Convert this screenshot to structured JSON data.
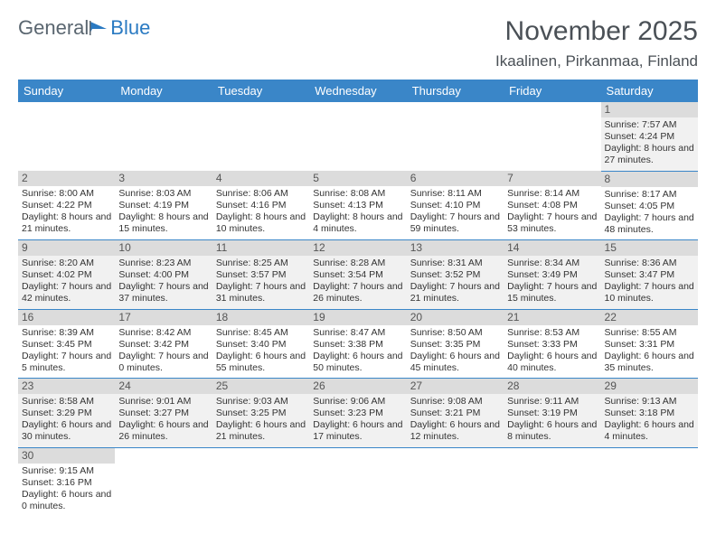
{
  "logo": {
    "general": "General",
    "blue": "Blue"
  },
  "title": "November 2025",
  "location": "Ikaalinen, Pirkanmaa, Finland",
  "headers": [
    "Sunday",
    "Monday",
    "Tuesday",
    "Wednesday",
    "Thursday",
    "Friday",
    "Saturday"
  ],
  "colors": {
    "header_bg": "#3a86c8",
    "header_text": "#ffffff",
    "daynum_bg": "#dcdcdc",
    "row_odd_bg": "#f1f1f1",
    "logo_blue": "#2a7ac2",
    "logo_gray": "#5a6670",
    "border": "#3a86c8"
  },
  "weeks": [
    [
      null,
      null,
      null,
      null,
      null,
      null,
      {
        "n": "1",
        "sr": "Sunrise: 7:57 AM",
        "ss": "Sunset: 4:24 PM",
        "dl": "Daylight: 8 hours and 27 minutes."
      }
    ],
    [
      {
        "n": "2",
        "sr": "Sunrise: 8:00 AM",
        "ss": "Sunset: 4:22 PM",
        "dl": "Daylight: 8 hours and 21 minutes."
      },
      {
        "n": "3",
        "sr": "Sunrise: 8:03 AM",
        "ss": "Sunset: 4:19 PM",
        "dl": "Daylight: 8 hours and 15 minutes."
      },
      {
        "n": "4",
        "sr": "Sunrise: 8:06 AM",
        "ss": "Sunset: 4:16 PM",
        "dl": "Daylight: 8 hours and 10 minutes."
      },
      {
        "n": "5",
        "sr": "Sunrise: 8:08 AM",
        "ss": "Sunset: 4:13 PM",
        "dl": "Daylight: 8 hours and 4 minutes."
      },
      {
        "n": "6",
        "sr": "Sunrise: 8:11 AM",
        "ss": "Sunset: 4:10 PM",
        "dl": "Daylight: 7 hours and 59 minutes."
      },
      {
        "n": "7",
        "sr": "Sunrise: 8:14 AM",
        "ss": "Sunset: 4:08 PM",
        "dl": "Daylight: 7 hours and 53 minutes."
      },
      {
        "n": "8",
        "sr": "Sunrise: 8:17 AM",
        "ss": "Sunset: 4:05 PM",
        "dl": "Daylight: 7 hours and 48 minutes."
      }
    ],
    [
      {
        "n": "9",
        "sr": "Sunrise: 8:20 AM",
        "ss": "Sunset: 4:02 PM",
        "dl": "Daylight: 7 hours and 42 minutes."
      },
      {
        "n": "10",
        "sr": "Sunrise: 8:23 AM",
        "ss": "Sunset: 4:00 PM",
        "dl": "Daylight: 7 hours and 37 minutes."
      },
      {
        "n": "11",
        "sr": "Sunrise: 8:25 AM",
        "ss": "Sunset: 3:57 PM",
        "dl": "Daylight: 7 hours and 31 minutes."
      },
      {
        "n": "12",
        "sr": "Sunrise: 8:28 AM",
        "ss": "Sunset: 3:54 PM",
        "dl": "Daylight: 7 hours and 26 minutes."
      },
      {
        "n": "13",
        "sr": "Sunrise: 8:31 AM",
        "ss": "Sunset: 3:52 PM",
        "dl": "Daylight: 7 hours and 21 minutes."
      },
      {
        "n": "14",
        "sr": "Sunrise: 8:34 AM",
        "ss": "Sunset: 3:49 PM",
        "dl": "Daylight: 7 hours and 15 minutes."
      },
      {
        "n": "15",
        "sr": "Sunrise: 8:36 AM",
        "ss": "Sunset: 3:47 PM",
        "dl": "Daylight: 7 hours and 10 minutes."
      }
    ],
    [
      {
        "n": "16",
        "sr": "Sunrise: 8:39 AM",
        "ss": "Sunset: 3:45 PM",
        "dl": "Daylight: 7 hours and 5 minutes."
      },
      {
        "n": "17",
        "sr": "Sunrise: 8:42 AM",
        "ss": "Sunset: 3:42 PM",
        "dl": "Daylight: 7 hours and 0 minutes."
      },
      {
        "n": "18",
        "sr": "Sunrise: 8:45 AM",
        "ss": "Sunset: 3:40 PM",
        "dl": "Daylight: 6 hours and 55 minutes."
      },
      {
        "n": "19",
        "sr": "Sunrise: 8:47 AM",
        "ss": "Sunset: 3:38 PM",
        "dl": "Daylight: 6 hours and 50 minutes."
      },
      {
        "n": "20",
        "sr": "Sunrise: 8:50 AM",
        "ss": "Sunset: 3:35 PM",
        "dl": "Daylight: 6 hours and 45 minutes."
      },
      {
        "n": "21",
        "sr": "Sunrise: 8:53 AM",
        "ss": "Sunset: 3:33 PM",
        "dl": "Daylight: 6 hours and 40 minutes."
      },
      {
        "n": "22",
        "sr": "Sunrise: 8:55 AM",
        "ss": "Sunset: 3:31 PM",
        "dl": "Daylight: 6 hours and 35 minutes."
      }
    ],
    [
      {
        "n": "23",
        "sr": "Sunrise: 8:58 AM",
        "ss": "Sunset: 3:29 PM",
        "dl": "Daylight: 6 hours and 30 minutes."
      },
      {
        "n": "24",
        "sr": "Sunrise: 9:01 AM",
        "ss": "Sunset: 3:27 PM",
        "dl": "Daylight: 6 hours and 26 minutes."
      },
      {
        "n": "25",
        "sr": "Sunrise: 9:03 AM",
        "ss": "Sunset: 3:25 PM",
        "dl": "Daylight: 6 hours and 21 minutes."
      },
      {
        "n": "26",
        "sr": "Sunrise: 9:06 AM",
        "ss": "Sunset: 3:23 PM",
        "dl": "Daylight: 6 hours and 17 minutes."
      },
      {
        "n": "27",
        "sr": "Sunrise: 9:08 AM",
        "ss": "Sunset: 3:21 PM",
        "dl": "Daylight: 6 hours and 12 minutes."
      },
      {
        "n": "28",
        "sr": "Sunrise: 9:11 AM",
        "ss": "Sunset: 3:19 PM",
        "dl": "Daylight: 6 hours and 8 minutes."
      },
      {
        "n": "29",
        "sr": "Sunrise: 9:13 AM",
        "ss": "Sunset: 3:18 PM",
        "dl": "Daylight: 6 hours and 4 minutes."
      }
    ],
    [
      {
        "n": "30",
        "sr": "Sunrise: 9:15 AM",
        "ss": "Sunset: 3:16 PM",
        "dl": "Daylight: 6 hours and 0 minutes."
      },
      null,
      null,
      null,
      null,
      null,
      null
    ]
  ]
}
